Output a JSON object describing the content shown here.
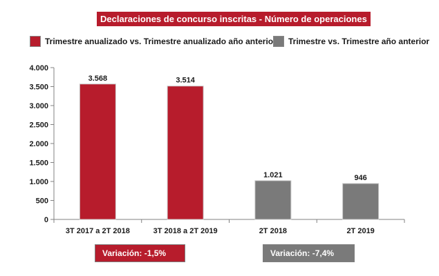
{
  "chart_data": {
    "type": "bar",
    "title": "Declaraciones de concurso inscritas - Número de operaciones",
    "categories": [
      "3T 2017 a 2T 2018",
      "3T 2018 a 2T 2019",
      "2T 2018",
      "2T 2019"
    ],
    "values": [
      3568,
      3514,
      1021,
      946
    ],
    "value_labels": [
      "3.568",
      "3.514",
      "1.021",
      "946"
    ],
    "bar_series": [
      0,
      0,
      1,
      1
    ],
    "series": [
      {
        "name": "Trimestre anualizado vs. Trimestre anualizado año anterior",
        "color": "#b71c2c"
      },
      {
        "name": "Trimestre vs. Trimestre año anterior",
        "color": "#7a7a7a"
      }
    ],
    "yticks": [
      0,
      500,
      1000,
      1500,
      2000,
      2500,
      3000,
      3500,
      4000
    ],
    "ytick_labels": [
      "0",
      "500",
      "1.000",
      "1.500",
      "2.000",
      "2.500",
      "3.000",
      "3.500",
      "4.000"
    ],
    "ylim": [
      0,
      4000
    ],
    "grid": false,
    "legend_position": "top",
    "annotations": [
      {
        "text": "Variación:  -1,5%",
        "color": "#b71c2c"
      },
      {
        "text": "Variación: -7,4%",
        "color": "#7a7a7a"
      }
    ]
  }
}
